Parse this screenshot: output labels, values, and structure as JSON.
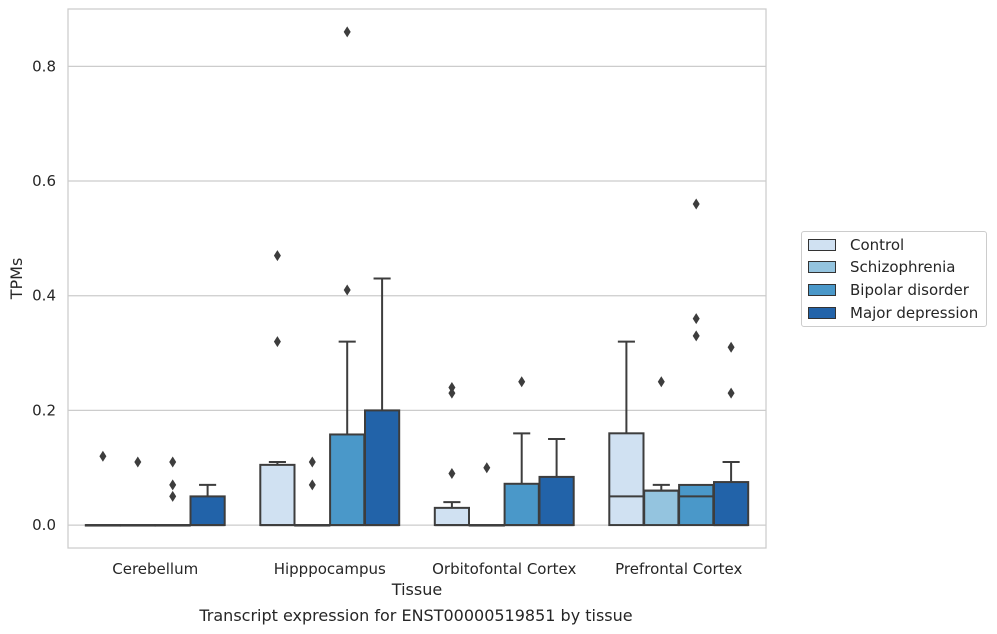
{
  "caption": "Transcript expression for ENST00000519851 by tissue",
  "chart_data": {
    "type": "box",
    "xlabel": "Tissue",
    "ylabel": "TPMs",
    "ylim": [
      -0.04,
      0.9
    ],
    "yticks": [
      0.0,
      0.2,
      0.4,
      0.6,
      0.8
    ],
    "ytick_labels": [
      "0.0",
      "0.2",
      "0.4",
      "0.6",
      "0.8"
    ],
    "grid": "horizontal",
    "legend_position": "right",
    "categories": [
      "Cerebellum",
      "Hipppocampus",
      "Orbitofontal Cortex",
      "Prefrontal Cortex"
    ],
    "series": [
      {
        "name": "Control",
        "color": "#d0e1f2",
        "boxes": [
          {
            "q1": 0,
            "median": 0,
            "q3": 0,
            "whisker_low": 0,
            "whisker_high": 0,
            "outliers": [
              0.12
            ]
          },
          {
            "q1": 0,
            "median": 0,
            "q3": 0.105,
            "whisker_low": 0,
            "whisker_high": 0.11,
            "outliers": [
              0.32,
              0.47
            ]
          },
          {
            "q1": 0,
            "median": 0,
            "q3": 0.03,
            "whisker_low": 0,
            "whisker_high": 0.04,
            "outliers": [
              0.09,
              0.23,
              0.24
            ]
          },
          {
            "q1": 0,
            "median": 0.05,
            "q3": 0.16,
            "whisker_low": 0,
            "whisker_high": 0.32,
            "outliers": []
          }
        ]
      },
      {
        "name": "Schizophrenia",
        "color": "#94c4df",
        "boxes": [
          {
            "q1": 0,
            "median": 0,
            "q3": 0,
            "whisker_low": 0,
            "whisker_high": 0,
            "outliers": [
              0.11
            ]
          },
          {
            "q1": 0,
            "median": 0,
            "q3": 0,
            "whisker_low": 0,
            "whisker_high": 0,
            "outliers": [
              0.07,
              0.11
            ]
          },
          {
            "q1": 0,
            "median": 0,
            "q3": 0,
            "whisker_low": 0,
            "whisker_high": 0,
            "outliers": [
              0.1
            ]
          },
          {
            "q1": 0,
            "median": 0.06,
            "q3": 0.06,
            "whisker_low": 0,
            "whisker_high": 0.07,
            "outliers": [
              0.25
            ]
          }
        ]
      },
      {
        "name": "Bipolar disorder",
        "color": "#4a98c9",
        "boxes": [
          {
            "q1": 0,
            "median": 0,
            "q3": 0,
            "whisker_low": 0,
            "whisker_high": 0,
            "outliers": [
              0.05,
              0.07,
              0.11
            ]
          },
          {
            "q1": 0,
            "median": 0,
            "q3": 0.158,
            "whisker_low": 0,
            "whisker_high": 0.32,
            "outliers": [
              0.41,
              0.86
            ]
          },
          {
            "q1": 0,
            "median": 0,
            "q3": 0.072,
            "whisker_low": 0,
            "whisker_high": 0.16,
            "outliers": [
              0.25
            ]
          },
          {
            "q1": 0,
            "median": 0.05,
            "q3": 0.07,
            "whisker_low": 0,
            "whisker_high": 0.07,
            "outliers": [
              0.33,
              0.36,
              0.56
            ]
          }
        ]
      },
      {
        "name": "Major depression",
        "color": "#2263a9",
        "boxes": [
          {
            "q1": 0,
            "median": 0,
            "q3": 0.05,
            "whisker_low": 0,
            "whisker_high": 0.07,
            "outliers": []
          },
          {
            "q1": 0,
            "median": 0,
            "q3": 0.2,
            "whisker_low": 0,
            "whisker_high": 0.43,
            "outliers": []
          },
          {
            "q1": 0,
            "median": 0,
            "q3": 0.084,
            "whisker_low": 0,
            "whisker_high": 0.15,
            "outliers": []
          },
          {
            "q1": 0,
            "median": 0,
            "q3": 0.075,
            "whisker_low": 0,
            "whisker_high": 0.11,
            "outliers": [
              0.23,
              0.31
            ]
          }
        ]
      }
    ]
  }
}
